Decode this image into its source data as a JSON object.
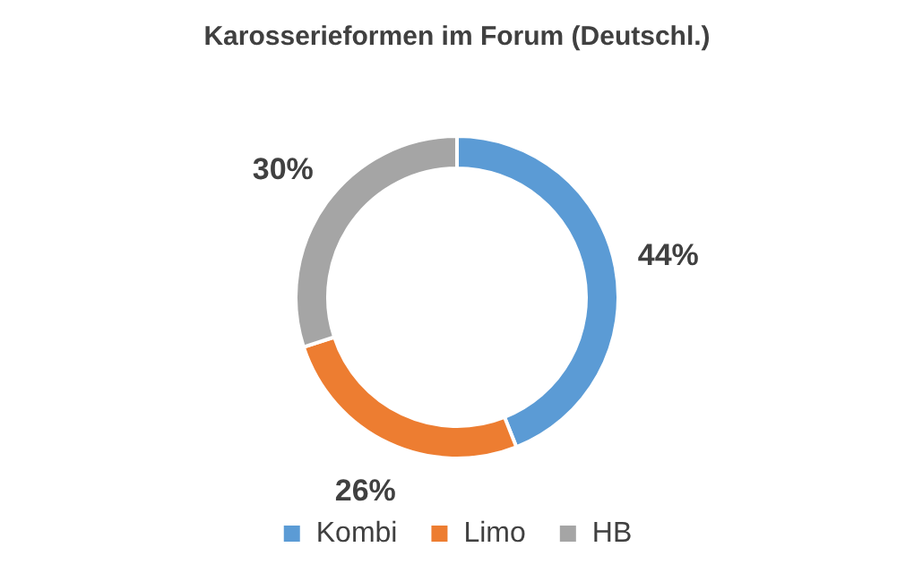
{
  "chart_data": {
    "type": "donut",
    "title": "Karosserieformen im Forum (Deutschl.)",
    "categories": [
      "Kombi",
      "Limo",
      "HB"
    ],
    "values": [
      44,
      26,
      30
    ],
    "value_labels": [
      "44%",
      "26%",
      "30%"
    ],
    "colors": [
      "#5b9bd5",
      "#ed7d31",
      "#a5a5a5"
    ],
    "legend": "bottom"
  }
}
